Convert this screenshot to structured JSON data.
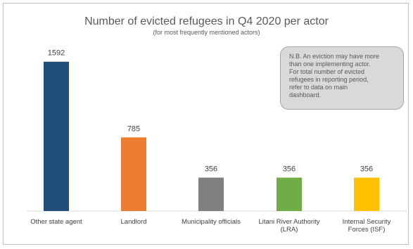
{
  "chart_data": {
    "type": "bar",
    "title": "Number of evicted refugees in Q4 2020 per actor",
    "subtitle": "(for most frequently mentioned actors)",
    "categories": [
      [
        "Other state agent"
      ],
      [
        "Landlord"
      ],
      [
        "Municipality officials"
      ],
      [
        "Litani River Authority",
        "(LRA)"
      ],
      [
        "Internal Security",
        "Forces (ISF)"
      ]
    ],
    "values": [
      1592,
      785,
      356,
      356,
      356
    ],
    "colors": [
      "#1f4e79",
      "#ed7d31",
      "#7f7f7f",
      "#70ad47",
      "#ffc000"
    ],
    "ylim": [
      0,
      1800
    ],
    "grid": false,
    "data_labels": true,
    "xlabel": "",
    "ylabel": ""
  },
  "note": "N.B. An eviction may have more than one implementing actor. For total number of evicted refugees in reporting period, refer to data on main dashboard."
}
